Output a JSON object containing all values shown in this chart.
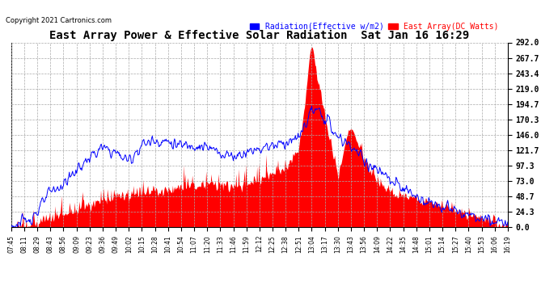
{
  "title": "East Array Power & Effective Solar Radiation  Sat Jan 16 16:29",
  "copyright": "Copyright 2021 Cartronics.com",
  "legend_radiation": "Radiation(Effective w/m2)",
  "legend_east": "East Array(DC Watts)",
  "radiation_color": "blue",
  "east_color": "red",
  "bg_color": "#ffffff",
  "grid_color": "#aaaaaa",
  "ytick_labels": [
    "0.0",
    "24.3",
    "48.7",
    "73.0",
    "97.3",
    "121.7",
    "146.0",
    "170.3",
    "194.7",
    "219.0",
    "243.4",
    "267.7",
    "292.0"
  ],
  "ytick_values": [
    0.0,
    24.3,
    48.7,
    73.0,
    97.3,
    121.7,
    146.0,
    170.3,
    194.7,
    219.0,
    243.4,
    267.7,
    292.0
  ],
  "xtick_labels": [
    "07:45",
    "08:11",
    "08:29",
    "08:43",
    "08:56",
    "09:09",
    "09:23",
    "09:36",
    "09:49",
    "10:02",
    "10:15",
    "10:28",
    "10:41",
    "10:54",
    "11:07",
    "11:20",
    "11:33",
    "11:46",
    "11:59",
    "12:12",
    "12:25",
    "12:38",
    "12:51",
    "13:04",
    "13:17",
    "13:30",
    "13:43",
    "13:56",
    "14:09",
    "14:22",
    "14:35",
    "14:48",
    "15:01",
    "15:14",
    "15:27",
    "15:40",
    "15:53",
    "16:06",
    "16:19"
  ],
  "ymax": 292.0,
  "ymin": 0.0,
  "rad_values": [
    2,
    8,
    25,
    55,
    68,
    90,
    110,
    125,
    118,
    105,
    130,
    138,
    135,
    128,
    132,
    125,
    118,
    112,
    120,
    125,
    130,
    135,
    140,
    185,
    175,
    140,
    130,
    105,
    90,
    73,
    60,
    48,
    40,
    32,
    25,
    18,
    12,
    8,
    5
  ],
  "east_values": [
    1,
    3,
    8,
    15,
    20,
    28,
    35,
    42,
    48,
    52,
    55,
    58,
    60,
    62,
    65,
    68,
    65,
    62,
    68,
    75,
    85,
    95,
    120,
    285,
    175,
    80,
    155,
    110,
    70,
    55,
    50,
    45,
    38,
    32,
    25,
    18,
    12,
    8,
    3
  ]
}
